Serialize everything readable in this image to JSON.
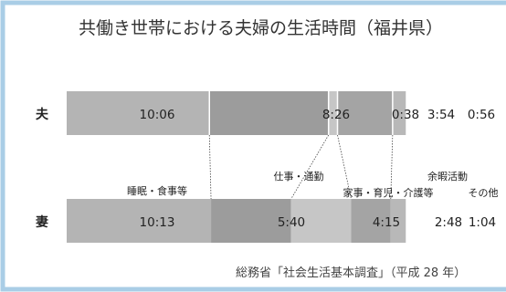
{
  "title": "共働き世帯における夫婦の生活時間（福井県）",
  "source": "総務省「社会生活基本調査」（平成 28 年）",
  "colors": {
    "frame": "#a9cde6",
    "sleep": "#b4b4b4",
    "work": "#9c9c9c",
    "housework": "#c6c6c6",
    "leisure": "#a4a4a4",
    "other": "#b8b8b8",
    "text": "#222222",
    "connector": "#444444"
  },
  "chart_data": {
    "type": "bar",
    "orientation": "horizontal",
    "stacked": true,
    "title": "共働き世帯における夫婦の生活時間（福井県）",
    "categories": [
      "夫",
      "妻"
    ],
    "series": [
      {
        "name": "睡眠・食事等",
        "values": [
          "10:06",
          "10:13"
        ]
      },
      {
        "name": "仕事・通勤",
        "values": [
          "8:26",
          "5:40"
        ]
      },
      {
        "name": "家事・育児・介護等",
        "values": [
          "0:38",
          "4:15"
        ]
      },
      {
        "name": "余暇活動",
        "values": [
          "3:54",
          "2:48"
        ]
      },
      {
        "name": "その他",
        "values": [
          "0:56",
          "1:04"
        ]
      }
    ],
    "units": "hours:minutes per day",
    "legend": "labels between bars with dotted connectors",
    "grid": false
  }
}
